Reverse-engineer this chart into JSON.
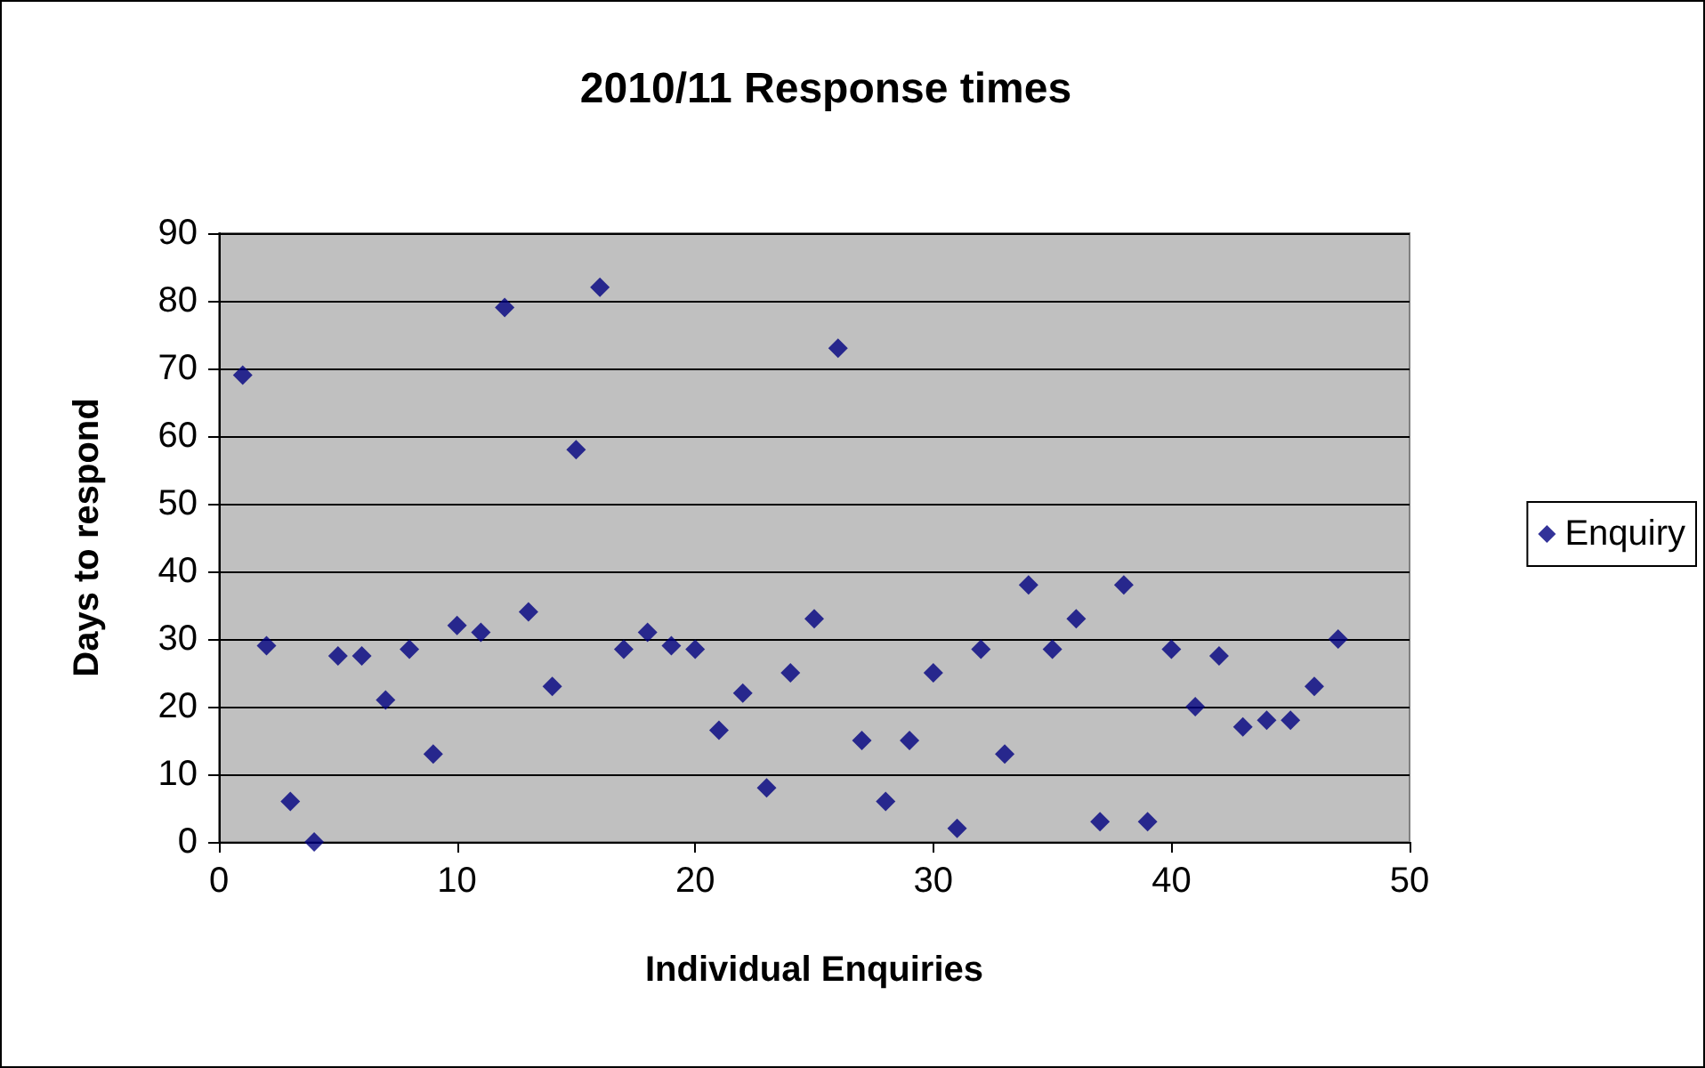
{
  "chart_data": {
    "type": "scatter",
    "title": "2010/11 Response times",
    "xlabel": "Individual Enquiries",
    "ylabel": "Days to respond",
    "x": [
      1,
      2,
      3,
      4,
      5,
      6,
      7,
      8,
      9,
      10,
      11,
      12,
      13,
      14,
      15,
      16,
      17,
      18,
      19,
      20,
      21,
      22,
      23,
      24,
      25,
      26,
      27,
      28,
      29,
      30,
      31,
      32,
      33,
      34,
      35,
      36,
      37,
      38,
      39,
      40,
      41,
      42,
      43,
      44,
      45,
      46,
      47
    ],
    "series": [
      {
        "name": "Enquiry",
        "color": "#000080",
        "values": [
          69,
          29,
          6,
          0,
          27.5,
          27.5,
          21,
          28.5,
          13,
          32,
          31,
          79,
          34,
          23,
          58,
          82,
          28.5,
          31,
          29,
          28.5,
          16.5,
          22,
          8,
          25,
          33,
          73,
          15,
          6,
          15,
          25,
          2,
          28.5,
          13,
          38,
          28.5,
          33,
          3,
          38,
          3,
          28.5,
          20,
          27.5,
          17,
          18,
          18,
          23,
          30
        ]
      }
    ],
    "xlim": [
      0,
      50
    ],
    "xticks": [
      0,
      10,
      20,
      30,
      40,
      50
    ],
    "ylim": [
      0,
      90
    ],
    "yticks": [
      0,
      10,
      20,
      30,
      40,
      50,
      60,
      70,
      80,
      90
    ],
    "grid": "y",
    "legend": "right",
    "marker": "diamond"
  }
}
